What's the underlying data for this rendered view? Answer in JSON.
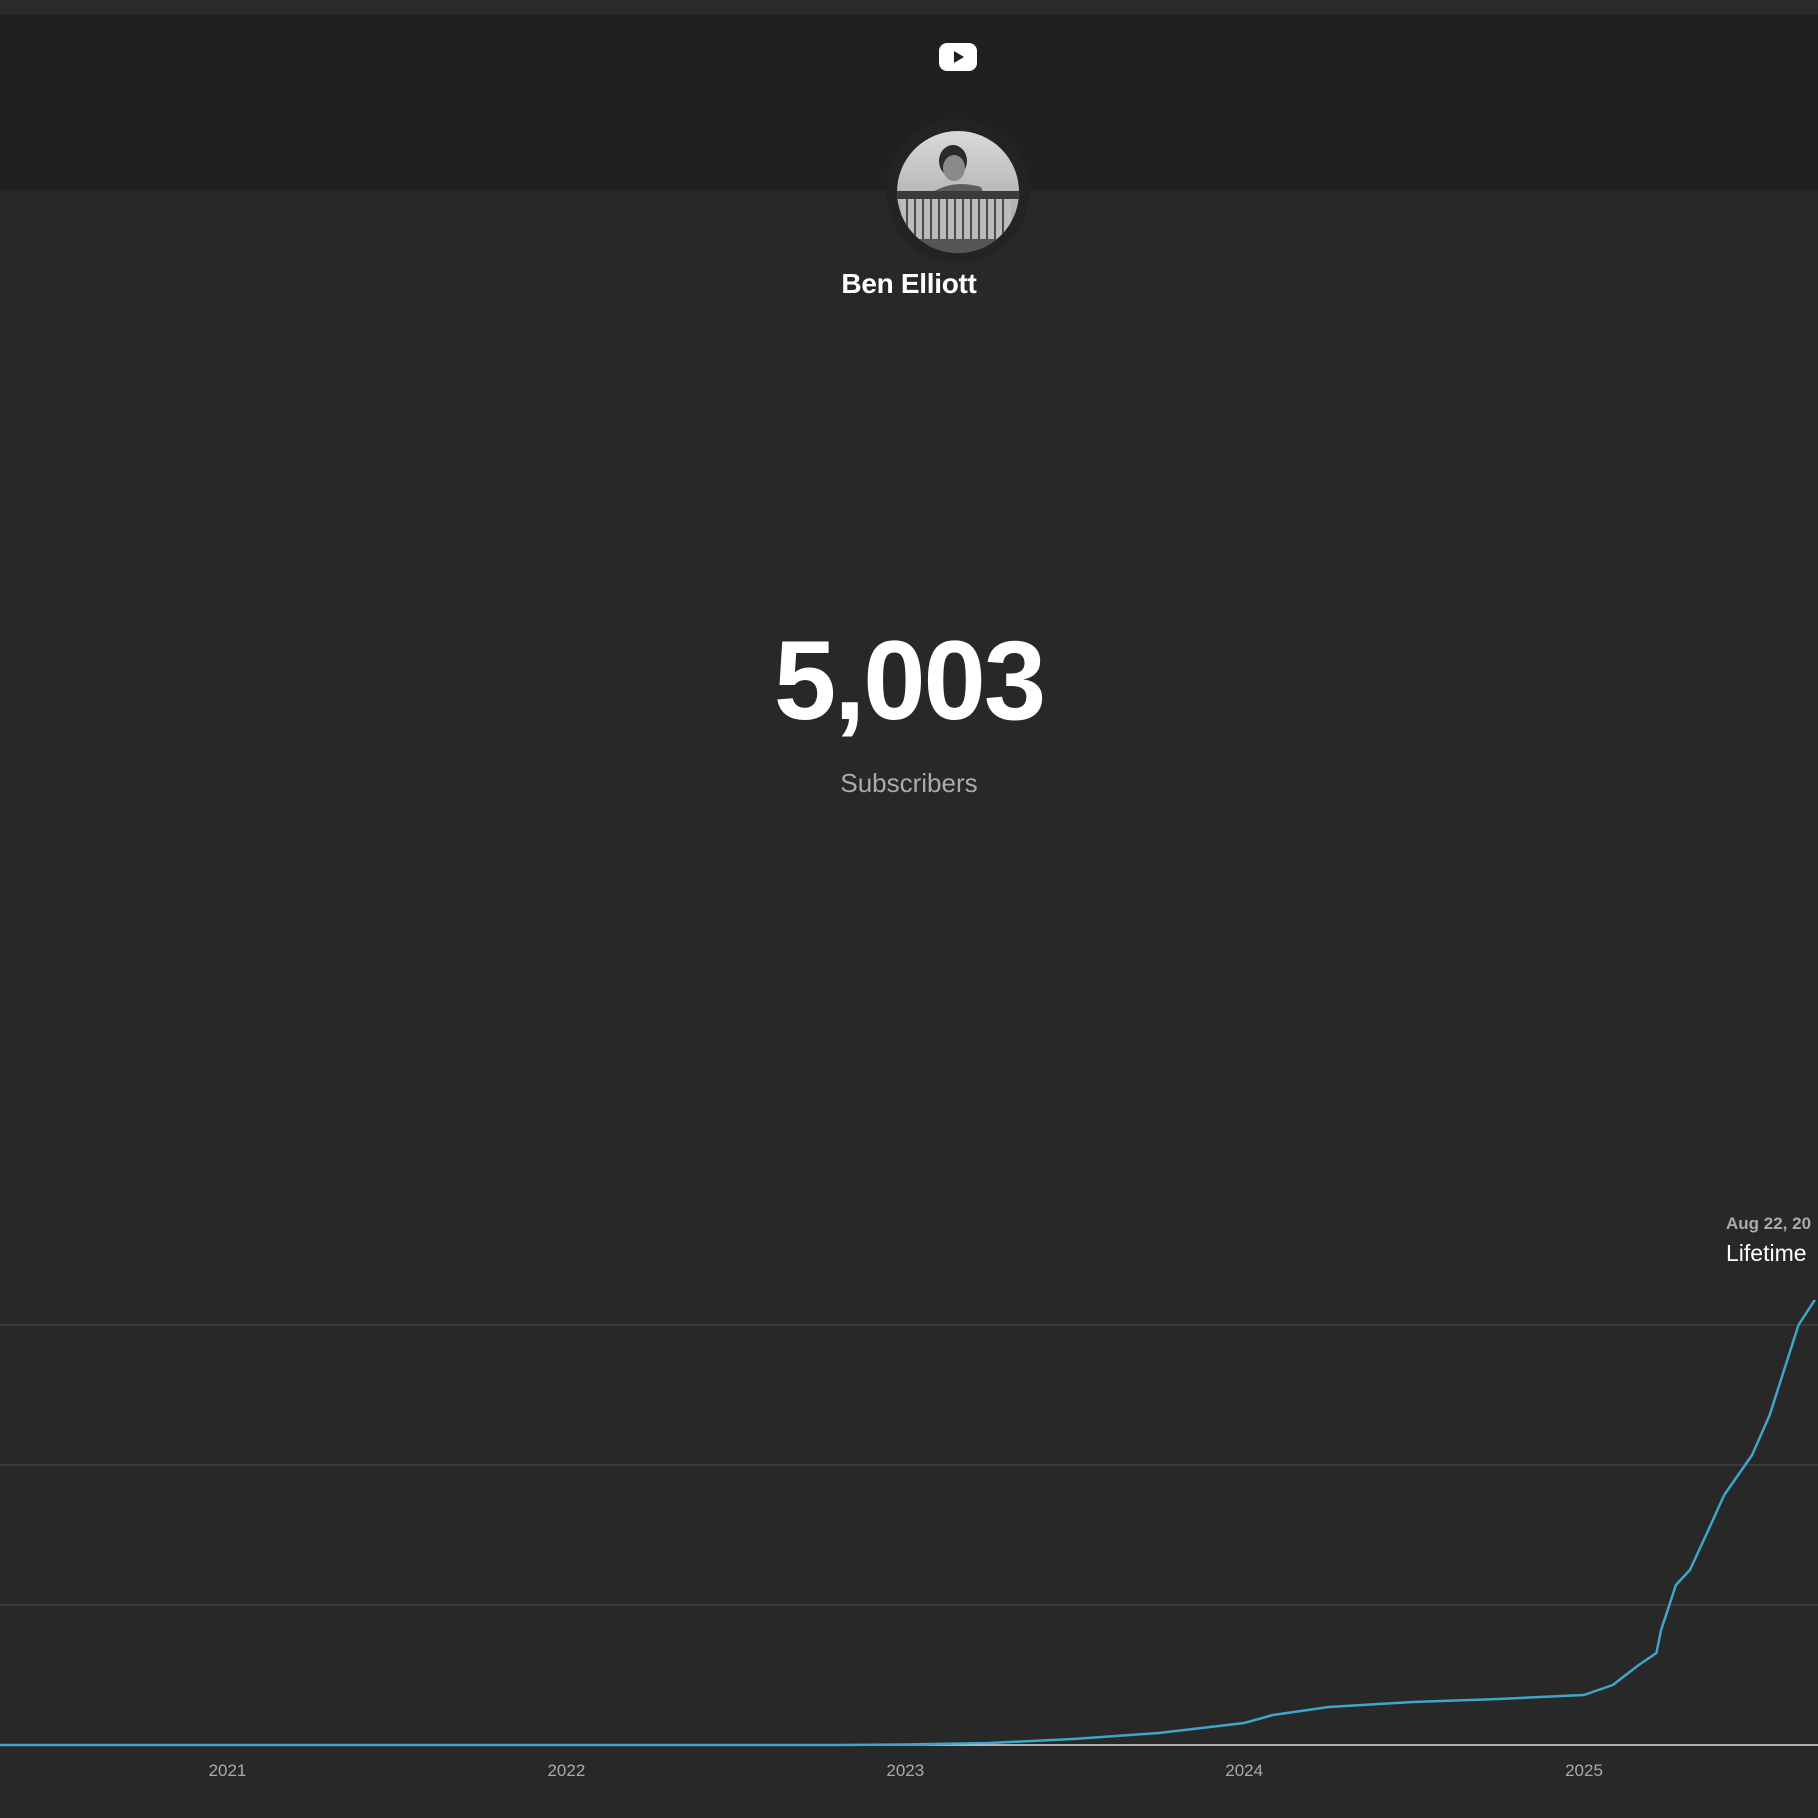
{
  "channel": {
    "name": "Ben Elliott",
    "subscriber_count": "5,003",
    "subscriber_label": "Subscribers"
  },
  "tooltip": {
    "date": "Aug 22, 20",
    "label": "Lifetime"
  },
  "icons": {
    "logo": "youtube-play-icon"
  },
  "colors": {
    "background": "#282828",
    "banner": "#202020",
    "line": "#3ea6c8",
    "grid": "#3d3d3d",
    "axis_text": "#aaaaaa"
  },
  "chart_data": {
    "type": "line",
    "x_ticks": [
      "2021",
      "2022",
      "2023",
      "2024",
      "2025"
    ],
    "xlim": [
      "2020-05-01",
      "2025-09-10"
    ],
    "grid": true,
    "series": [
      {
        "x": [
          "2020-05-01",
          "2021-06-01",
          "2022-01-01",
          "2022-07-01",
          "2022-10-15",
          "2023-01-01",
          "2023-04-01",
          "2023-07-01",
          "2023-10-01",
          "2024-01-01",
          "2024-02-01",
          "2024-04-01",
          "2024-07-01",
          "2024-10-01",
          "2025-01-01",
          "2025-02-01",
          "2025-03-01",
          "2025-03-20",
          "2025-03-25",
          "2025-04-10",
          "2025-04-25",
          "2025-05-15",
          "2025-06-01",
          "2025-07-01",
          "2025-07-20",
          "2025-08-20",
          "2025-09-10"
        ],
        "y": [
          0,
          0,
          0,
          0,
          0,
          5,
          20,
          60,
          120,
          220,
          300,
          380,
          430,
          460,
          500,
          600,
          800,
          920,
          1150,
          1600,
          1750,
          2150,
          2500,
          2900,
          3300,
          4200,
          4500
        ]
      }
    ]
  }
}
